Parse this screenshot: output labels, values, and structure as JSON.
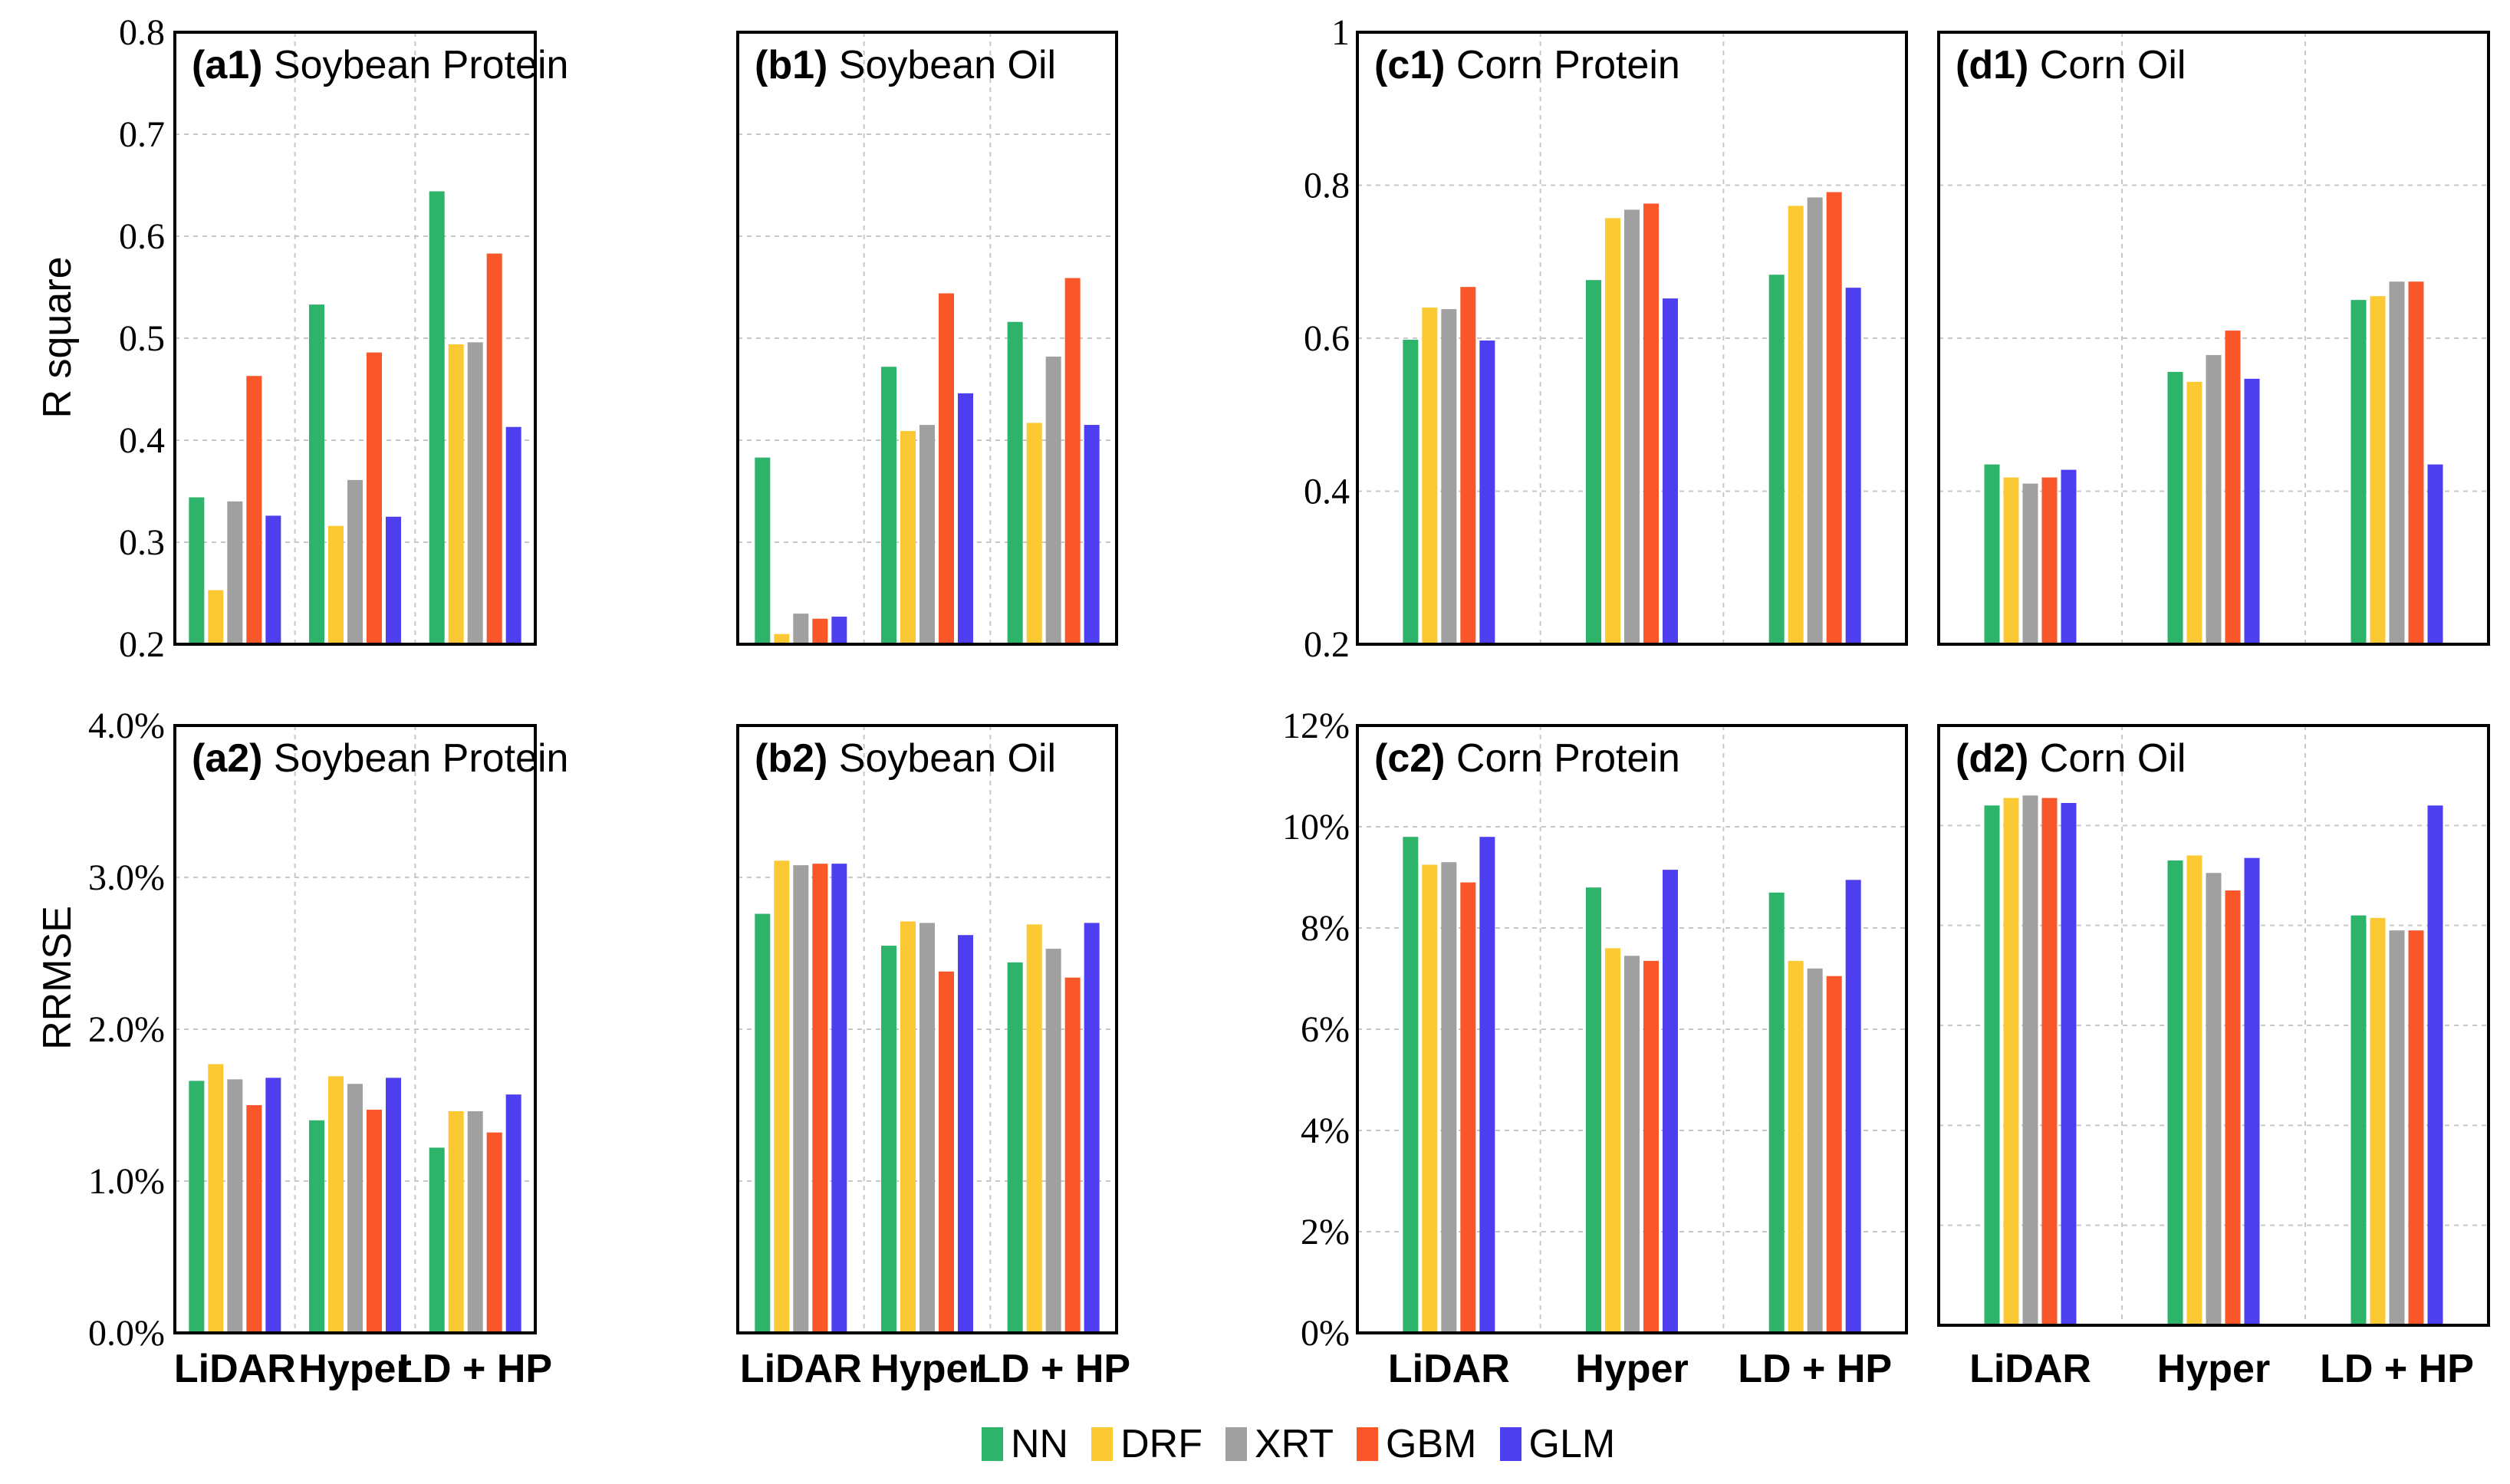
{
  "colors": {
    "NN": "#2db36a",
    "DRF": "#fbc933",
    "XRT": "#a0a0a0",
    "GBM": "#f9562a",
    "GLM": "#4d3ef0"
  },
  "legend": [
    {
      "name": "NN"
    },
    {
      "name": "DRF"
    },
    {
      "name": "XRT"
    },
    {
      "name": "GBM"
    },
    {
      "name": "GLM"
    }
  ],
  "axis_labels": {
    "r_square": "R square",
    "rrmse": "RRMSE"
  },
  "chart_data": [
    {
      "id": "a1",
      "type": "bar",
      "label": "(a1)",
      "title": "Soybean Protein",
      "categories": [
        "LiDAR",
        "Hyper",
        "LD + HP"
      ],
      "ylim": [
        0.2,
        0.8
      ],
      "yticks": [
        0.2,
        0.3,
        0.4,
        0.5,
        0.6,
        0.7,
        0.8
      ],
      "ytick_labels": [
        "0.2",
        "0.3",
        "0.4",
        "0.5",
        "0.6",
        "0.7",
        "0.8"
      ],
      "ylabel": "R square",
      "grid": true,
      "series": [
        {
          "name": "NN",
          "values": [
            0.344,
            0.533,
            0.644
          ]
        },
        {
          "name": "DRF",
          "values": [
            0.253,
            0.316,
            0.494
          ]
        },
        {
          "name": "XRT",
          "values": [
            0.34,
            0.361,
            0.496
          ]
        },
        {
          "name": "GBM",
          "values": [
            0.463,
            0.486,
            0.583
          ]
        },
        {
          "name": "GLM",
          "values": [
            0.326,
            0.325,
            0.413
          ]
        }
      ]
    },
    {
      "id": "b1",
      "type": "bar",
      "label": "(b1)",
      "title": "Soybean Oil",
      "categories": [
        "LiDAR",
        "Hyper",
        "LD + HP"
      ],
      "ylim": [
        0.2,
        0.8
      ],
      "yticks": [
        0.2,
        0.3,
        0.4,
        0.5,
        0.6,
        0.7,
        0.8
      ],
      "ytick_labels": [],
      "grid": true,
      "series": [
        {
          "name": "NN",
          "values": [
            0.383,
            0.472,
            0.516
          ]
        },
        {
          "name": "DRF",
          "values": [
            0.21,
            0.409,
            0.417
          ]
        },
        {
          "name": "XRT",
          "values": [
            0.23,
            0.415,
            0.482
          ]
        },
        {
          "name": "GBM",
          "values": [
            0.225,
            0.544,
            0.559
          ]
        },
        {
          "name": "GLM",
          "values": [
            0.227,
            0.446,
            0.415
          ]
        }
      ]
    },
    {
      "id": "c1",
      "type": "bar",
      "label": "(c1)",
      "title": "Corn Protein",
      "categories": [
        "LiDAR",
        "Hyper",
        "LD + HP"
      ],
      "ylim": [
        0.2,
        1.0
      ],
      "yticks": [
        0.2,
        0.4,
        0.6,
        0.8,
        1.0
      ],
      "ytick_labels": [
        "0.2",
        "0.4",
        "0.6",
        "0.8",
        "1"
      ],
      "grid": true,
      "series": [
        {
          "name": "NN",
          "values": [
            0.598,
            0.676,
            0.683
          ]
        },
        {
          "name": "DRF",
          "values": [
            0.64,
            0.757,
            0.773
          ]
        },
        {
          "name": "XRT",
          "values": [
            0.638,
            0.768,
            0.784
          ]
        },
        {
          "name": "GBM",
          "values": [
            0.667,
            0.776,
            0.791
          ]
        },
        {
          "name": "GLM",
          "values": [
            0.597,
            0.652,
            0.666
          ]
        }
      ]
    },
    {
      "id": "d1",
      "type": "bar",
      "label": "(d1)",
      "title": "Corn Oil",
      "categories": [
        "LiDAR",
        "Hyper",
        "LD + HP"
      ],
      "ylim": [
        0.2,
        1.0
      ],
      "yticks": [
        0.2,
        0.4,
        0.6,
        0.8,
        1.0
      ],
      "ytick_labels": [],
      "grid": true,
      "series": [
        {
          "name": "NN",
          "values": [
            0.435,
            0.556,
            0.65
          ]
        },
        {
          "name": "DRF",
          "values": [
            0.418,
            0.543,
            0.655
          ]
        },
        {
          "name": "XRT",
          "values": [
            0.41,
            0.578,
            0.674
          ]
        },
        {
          "name": "GBM",
          "values": [
            0.418,
            0.61,
            0.674
          ]
        },
        {
          "name": "GLM",
          "values": [
            0.428,
            0.547,
            0.435
          ]
        }
      ]
    },
    {
      "id": "a2",
      "type": "bar",
      "label": "(a2)",
      "title": "Soybean Protein",
      "categories": [
        "LiDAR",
        "Hyper",
        "LD + HP"
      ],
      "ylim": [
        0,
        4.0
      ],
      "yticks": [
        0,
        1,
        2,
        3,
        4
      ],
      "ytick_labels": [
        "0.0%",
        "1.0%",
        "2.0%",
        "3.0%",
        "4.0%"
      ],
      "ylabel": "RRMSE",
      "grid": true,
      "series": [
        {
          "name": "NN",
          "values": [
            1.66,
            1.4,
            1.22
          ]
        },
        {
          "name": "DRF",
          "values": [
            1.77,
            1.69,
            1.46
          ]
        },
        {
          "name": "XRT",
          "values": [
            1.67,
            1.64,
            1.46
          ]
        },
        {
          "name": "GBM",
          "values": [
            1.5,
            1.47,
            1.32
          ]
        },
        {
          "name": "GLM",
          "values": [
            1.68,
            1.68,
            1.57
          ]
        }
      ]
    },
    {
      "id": "b2",
      "type": "bar",
      "label": "(b2)",
      "title": "Soybean Oil",
      "categories": [
        "LiDAR",
        "Hyper",
        "LD + HP"
      ],
      "ylim": [
        0,
        4.0
      ],
      "yticks": [
        0,
        1,
        2,
        3,
        4
      ],
      "ytick_labels": [],
      "grid": true,
      "series": [
        {
          "name": "NN",
          "values": [
            2.76,
            2.55,
            2.44
          ]
        },
        {
          "name": "DRF",
          "values": [
            3.11,
            2.71,
            2.69
          ]
        },
        {
          "name": "XRT",
          "values": [
            3.08,
            2.7,
            2.53
          ]
        },
        {
          "name": "GBM",
          "values": [
            3.09,
            2.38,
            2.34
          ]
        },
        {
          "name": "GLM",
          "values": [
            3.09,
            2.62,
            2.7
          ]
        }
      ]
    },
    {
      "id": "c2",
      "type": "bar",
      "label": "(c2)",
      "title": "Corn Protein",
      "categories": [
        "LiDAR",
        "Hyper",
        "LD + HP"
      ],
      "ylim": [
        0,
        12
      ],
      "yticks": [
        0,
        2,
        4,
        6,
        8,
        10,
        12
      ],
      "ytick_labels": [
        "0%",
        "2%",
        "4%",
        "6%",
        "8%",
        "10%",
        "12%"
      ],
      "grid": true,
      "series": [
        {
          "name": "NN",
          "values": [
            9.8,
            8.8,
            8.7
          ]
        },
        {
          "name": "DRF",
          "values": [
            9.25,
            7.6,
            7.35
          ]
        },
        {
          "name": "XRT",
          "values": [
            9.3,
            7.45,
            7.2
          ]
        },
        {
          "name": "GBM",
          "values": [
            8.9,
            7.35,
            7.05
          ]
        },
        {
          "name": "GLM",
          "values": [
            9.8,
            9.15,
            8.95
          ]
        }
      ]
    },
    {
      "id": "d2",
      "type": "bar",
      "label": "(d2)",
      "title": "Corn Oil",
      "categories": [
        "LiDAR",
        "Hyper",
        "LD + HP"
      ],
      "ylim": [
        0,
        12
      ],
      "yticks": [
        0,
        2,
        4,
        6,
        8,
        10,
        12
      ],
      "ytick_labels": [],
      "grid": true,
      "series": [
        {
          "name": "NN",
          "values": [
            10.4,
            9.3,
            8.2
          ]
        },
        {
          "name": "DRF",
          "values": [
            10.55,
            9.4,
            8.15
          ]
        },
        {
          "name": "XRT",
          "values": [
            10.6,
            9.05,
            7.9
          ]
        },
        {
          "name": "GBM",
          "values": [
            10.55,
            8.7,
            7.9
          ]
        },
        {
          "name": "GLM",
          "values": [
            10.45,
            9.35,
            10.4
          ]
        }
      ]
    }
  ]
}
